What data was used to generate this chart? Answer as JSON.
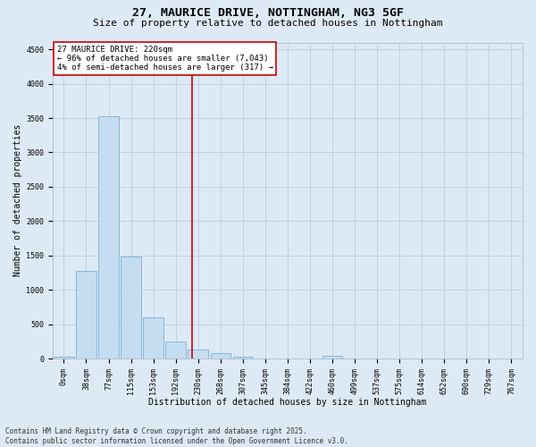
{
  "title_line1": "27, MAURICE DRIVE, NOTTINGHAM, NG3 5GF",
  "title_line2": "Size of property relative to detached houses in Nottingham",
  "xlabel": "Distribution of detached houses by size in Nottingham",
  "ylabel": "Number of detached properties",
  "bar_labels": [
    "0sqm",
    "38sqm",
    "77sqm",
    "115sqm",
    "153sqm",
    "192sqm",
    "230sqm",
    "268sqm",
    "307sqm",
    "345sqm",
    "384sqm",
    "422sqm",
    "460sqm",
    "499sqm",
    "537sqm",
    "575sqm",
    "614sqm",
    "652sqm",
    "690sqm",
    "729sqm",
    "767sqm"
  ],
  "bar_values": [
    30,
    1270,
    3530,
    1490,
    600,
    250,
    130,
    80,
    30,
    5,
    0,
    0,
    40,
    0,
    0,
    0,
    0,
    0,
    0,
    0,
    0
  ],
  "bar_color": "#c5ddf0",
  "bar_edge_color": "#7ab0d4",
  "annotation_text": "27 MAURICE DRIVE: 220sqm\n← 96% of detached houses are smaller (7,043)\n4% of semi-detached houses are larger (317) →",
  "annotation_box_color": "#ffffff",
  "annotation_box_edge_color": "#cc0000",
  "vline_color": "#cc0000",
  "ylim": [
    0,
    4600
  ],
  "yticks": [
    0,
    500,
    1000,
    1500,
    2000,
    2500,
    3000,
    3500,
    4000,
    4500
  ],
  "grid_color": "#b8cfe0",
  "background_color": "#ddeaf5",
  "plot_bg_color": "#ddeaf5",
  "footer_text": "Contains HM Land Registry data © Crown copyright and database right 2025.\nContains public sector information licensed under the Open Government Licence v3.0.",
  "title_fontsize": 9.5,
  "subtitle_fontsize": 8,
  "axis_label_fontsize": 7,
  "tick_fontsize": 6,
  "annotation_fontsize": 6.5,
  "footer_fontsize": 5.5
}
